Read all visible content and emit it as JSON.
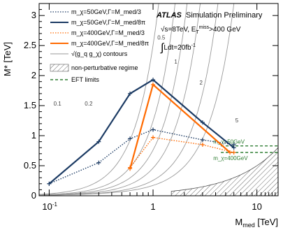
{
  "chart_data": {
    "type": "line",
    "xscale": "log",
    "xlim": [
      0.08,
      16
    ],
    "ylim": [
      0,
      3.2
    ],
    "xlabel": "M_med [TeV]",
    "ylabel": "M* [TeV]",
    "yticks": [
      "0",
      "0.5",
      "1",
      "1.5",
      "2",
      "2.5",
      "3"
    ],
    "xticks": [
      "10^-1",
      "1",
      "10"
    ],
    "annotation": {
      "atlas": "ATLAS",
      "rest": "Simulation Preliminary",
      "energy": "√s=8TeV, E_T^miss>400 GeV",
      "lumi": "∫Ldt=20fb^-1"
    },
    "series": [
      {
        "name": "m_χ=50GeV,Γ=M_med/3",
        "color": "#1b3a63",
        "style": "dotted",
        "x": [
          0.1,
          0.3,
          0.6,
          1.0,
          3.0,
          6.0
        ],
        "y": [
          0.2,
          0.55,
          0.95,
          1.1,
          0.93,
          0.85
        ]
      },
      {
        "name": "m_χ=50GeV,Γ=M_med/8π",
        "color": "#1b3a63",
        "style": "solid",
        "x": [
          0.1,
          0.3,
          0.6,
          1.0,
          3.0,
          6.0
        ],
        "y": [
          0.2,
          0.9,
          1.7,
          1.93,
          1.22,
          0.8
        ]
      },
      {
        "name": "m_χ=400GeV,Γ=M_med/3",
        "color": "#ff6a00",
        "style": "dotted",
        "x": [
          0.6,
          1.0,
          3.0,
          6.0
        ],
        "y": [
          0.47,
          0.97,
          0.85,
          0.72
        ]
      },
      {
        "name": "m_χ=400GeV,Γ=M_med/8π",
        "color": "#ff6a00",
        "style": "solid",
        "x": [
          0.6,
          1.0,
          5.5
        ],
        "y": [
          0.45,
          1.85,
          0.72
        ]
      }
    ],
    "contours": {
      "legend": "√(g_q g_χ) contours",
      "labels": [
        "0.1",
        "0.2",
        "0.5",
        "1",
        "2",
        "5"
      ]
    },
    "regime": {
      "legend": "non-perturbative regime"
    },
    "eft": {
      "legend": "EFT limits",
      "color": "#2e7d32",
      "lines": [
        {
          "label": "m_χ=50GeV",
          "y": 0.83
        },
        {
          "label": "m_χ=400GeV",
          "y": 0.72
        }
      ]
    }
  }
}
